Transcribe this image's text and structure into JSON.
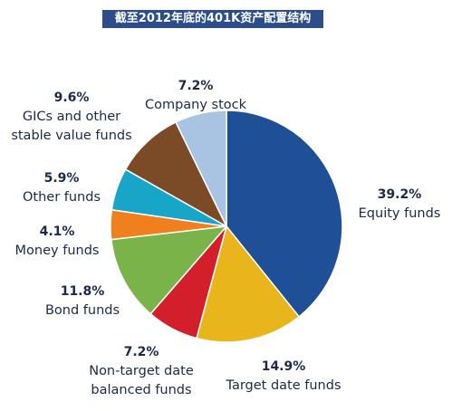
{
  "title": "截至2012年底的401K资产配置结构",
  "chart_data": {
    "type": "pie",
    "start_angle_deg": 0,
    "direction": "clockwise",
    "slices": [
      {
        "name": "Equity funds",
        "percent_label": "39.2%",
        "value": 39.2,
        "color": "#1f4f96"
      },
      {
        "name": "Target date funds",
        "percent_label": "14.9%",
        "value": 14.9,
        "color": "#e8b51c"
      },
      {
        "name": "Non-target date balanced funds",
        "percent_label": "7.2%",
        "value": 7.2,
        "color": "#d21f2b"
      },
      {
        "name": "Bond funds",
        "percent_label": "11.8%",
        "value": 11.8,
        "color": "#7ab34a"
      },
      {
        "name": "Money funds",
        "percent_label": "4.1%",
        "value": 4.1,
        "color": "#f07f1e"
      },
      {
        "name": "Other funds",
        "percent_label": "5.9%",
        "value": 5.9,
        "color": "#18a6c8"
      },
      {
        "name": "GICs and other stable value funds",
        "percent_label": "9.6%",
        "value": 9.6,
        "color": "#7b4a26"
      },
      {
        "name": "Company stock",
        "percent_label": "7.2%",
        "value": 7.2,
        "color": "#a9c3e2"
      }
    ]
  },
  "labels": [
    {
      "pct": "39.2%",
      "lines": [
        "Equity funds"
      ]
    },
    {
      "pct": "14.9%",
      "lines": [
        "Target date funds"
      ]
    },
    {
      "pct": "7.2%",
      "lines": [
        "Non-target date",
        "balanced funds"
      ]
    },
    {
      "pct": "11.8%",
      "lines": [
        "Bond funds"
      ]
    },
    {
      "pct": "4.1%",
      "lines": [
        "Money funds"
      ]
    },
    {
      "pct": "5.9%",
      "lines": [
        "Other funds"
      ]
    },
    {
      "pct": "9.6%",
      "lines": [
        "GICs and other",
        "stable value funds"
      ]
    },
    {
      "pct": "7.2%",
      "lines": [
        "Company stock"
      ]
    }
  ]
}
